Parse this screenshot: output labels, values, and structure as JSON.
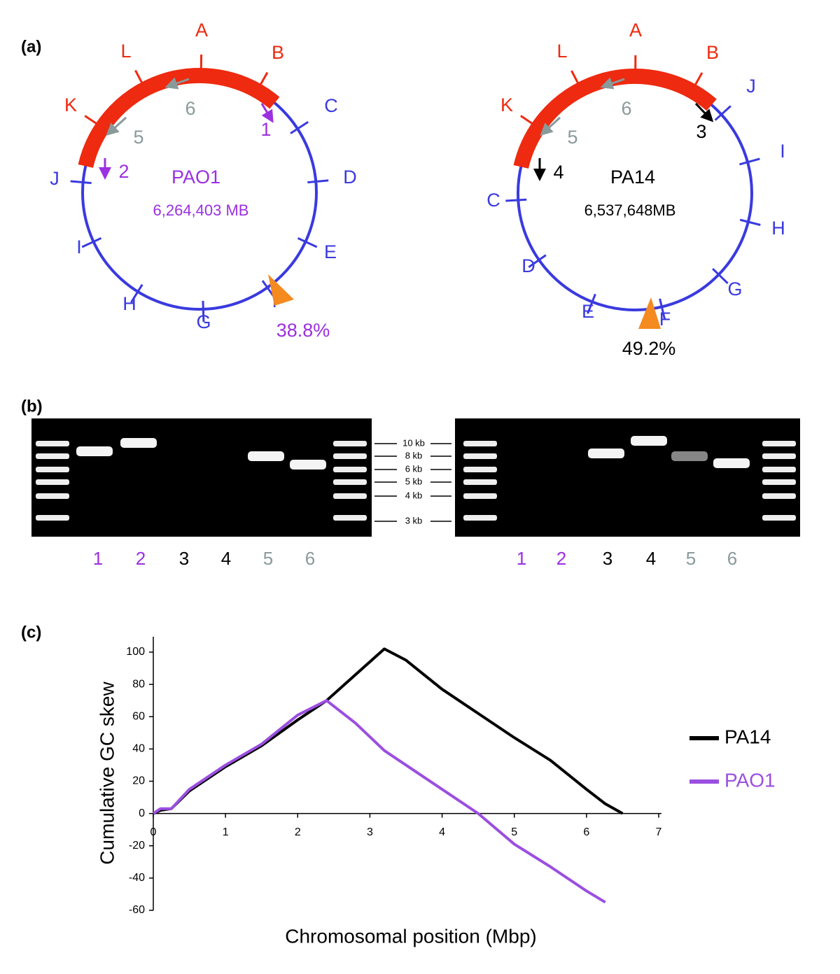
{
  "panel_a": {
    "label": "(a)",
    "genomes": [
      {
        "name": "PAO1",
        "size": "6,264,403 MB",
        "percent": "38.8%",
        "regions": [
          "A",
          "B",
          "C",
          "D",
          "E",
          "F",
          "G",
          "H",
          "I",
          "J",
          "K",
          "L"
        ],
        "arrows": [
          "1",
          "2",
          "5",
          "6"
        ]
      },
      {
        "name": "PA14",
        "size": "6,537,648MB",
        "percent": "49.2%",
        "regions": [
          "A",
          "B",
          "J",
          "I",
          "H",
          "G",
          "F",
          "E",
          "D",
          "C",
          "K",
          "L"
        ],
        "arrows": [
          "3",
          "4",
          "5",
          "6"
        ]
      }
    ]
  },
  "panel_b": {
    "label": "(b)",
    "ladder": [
      "10 kb",
      "8 kb",
      "6 kb",
      "5 kb",
      "4 kb",
      "3 kb"
    ],
    "gels": [
      {
        "lanes": [
          "1",
          "2",
          "3",
          "4",
          "5",
          "6"
        ]
      },
      {
        "lanes": [
          "1",
          "2",
          "3",
          "4",
          "5",
          "6"
        ]
      }
    ]
  },
  "panel_c": {
    "label": "(c)"
  },
  "chart_data": {
    "type": "line",
    "x_label": "Chromosomal position (Mbp)",
    "y_label": "Cumulative GC skew",
    "x": [
      0,
      0.1,
      0.25,
      0.5,
      1,
      1.5,
      2,
      2.4,
      2.8,
      3.2,
      3.5,
      4,
      4.5,
      5,
      5.5,
      6,
      6.26,
      6.5
    ],
    "series": [
      {
        "name": "PA14",
        "color": "#000000",
        "values": [
          0,
          2,
          3,
          14,
          29,
          42,
          58,
          70,
          86,
          102,
          95,
          77,
          62,
          47,
          33,
          15,
          6,
          0
        ]
      },
      {
        "name": "PAO1",
        "color": "#9b4fe0",
        "values": [
          0,
          3,
          3,
          15,
          30,
          43,
          61,
          70,
          56,
          39,
          30,
          15,
          0,
          -19,
          -33,
          -48,
          -55,
          null
        ]
      }
    ],
    "xlim": [
      0,
      7
    ],
    "xticks": [
      0,
      1,
      2,
      3,
      4,
      5,
      6,
      7
    ],
    "ylim": [
      -60,
      100
    ],
    "yticks": [
      -60,
      -40,
      -20,
      0,
      20,
      40,
      60,
      80,
      100
    ],
    "grid": false,
    "legend": "right"
  }
}
